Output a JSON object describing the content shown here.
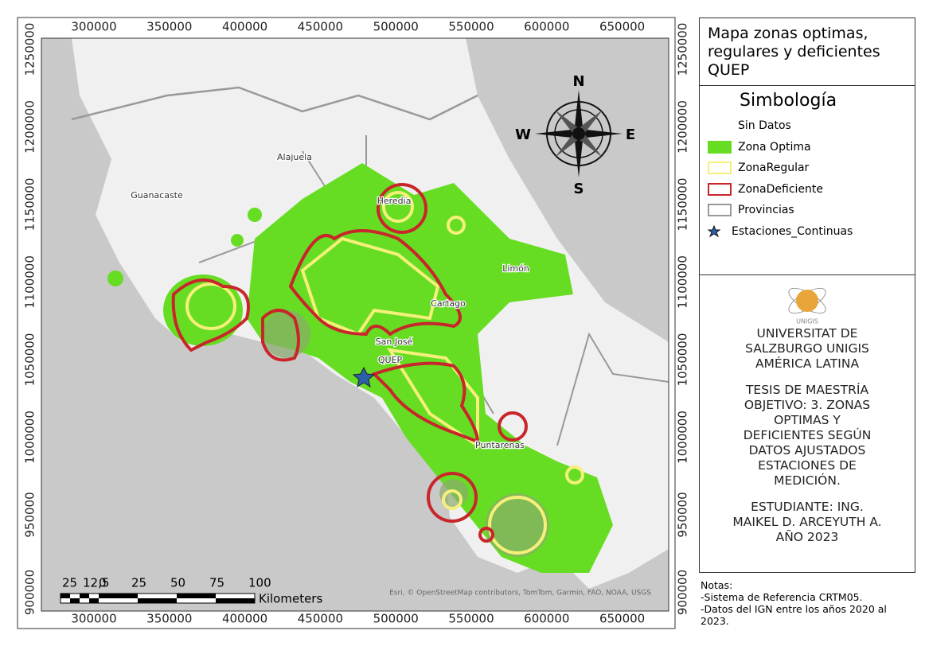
{
  "map": {
    "x_ticks": [
      300000,
      350000,
      400000,
      450000,
      500000,
      550000,
      600000,
      650000
    ],
    "y_ticks": [
      1250000,
      1200000,
      1150000,
      1100000,
      1050000,
      1000000,
      950000,
      900000
    ],
    "places": [
      {
        "name": "Alajuela"
      },
      {
        "name": "Guanacaste"
      },
      {
        "name": "Heredia"
      },
      {
        "name": "Limón"
      },
      {
        "name": "Cartago"
      },
      {
        "name": "San José"
      },
      {
        "name": "QUEP"
      },
      {
        "name": "Puntarenas"
      }
    ],
    "compass": {
      "north": "N",
      "south": "S",
      "west": "W",
      "east": "E"
    },
    "scale": {
      "labels": [
        "25",
        "12,5",
        "0",
        "25",
        "50",
        "75",
        "100"
      ],
      "unit": "Kilometers"
    },
    "attribution": "Esri, © OpenStreetMap contributors, TomTom, Garmin, FAO, NOAA, USGS"
  },
  "panel": {
    "title": "Mapa zonas optimas, regulares y deficientes QUEP",
    "legend_title": "Simbología",
    "legend": [
      "Sin Datos",
      "Zona Optima",
      "ZonaRegular",
      "ZonaDeficiente",
      "Provincias",
      "Estaciones_Continuas"
    ],
    "logo": "UNIGIS",
    "institution": "UNIVERSITAT DE SALZBURGO UNIGIS AMÉRICA LATINA",
    "thesis": "TESIS DE MAESTRÍA OBJETIVO: 3. ZONAS OPTIMAS Y DEFICIENTES SEGÚN DATOS AJUSTADOS ESTACIONES DE MEDICIÓN.",
    "student": "ESTUDIANTE: ING. MAIKEL D. ARCEYUTH A. AÑO 2023"
  },
  "notes": [
    "Notas:",
    "-Sistema de Referencia CRTM05.",
    "-Datos del IGN entre los años 2020 al 2023."
  ]
}
